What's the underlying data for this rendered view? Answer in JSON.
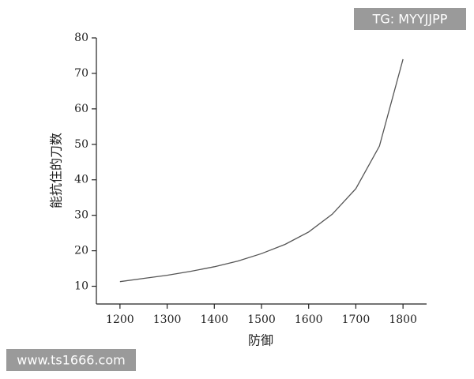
{
  "chart_data": {
    "type": "line",
    "x_label": "防御",
    "y_label": "能抗住的刀数",
    "x": [
      1200,
      1250,
      1300,
      1350,
      1400,
      1450,
      1500,
      1550,
      1600,
      1650,
      1700,
      1750,
      1800
    ],
    "series": [
      {
        "name": "",
        "color": "#555555",
        "values": [
          11.3,
          12.2,
          13.1,
          14.2,
          15.5,
          17.1,
          19.2,
          21.8,
          25.3,
          30.3,
          37.5,
          49.5,
          74
        ]
      }
    ],
    "xlim": [
      1150,
      1850
    ],
    "ylim": [
      5,
      80
    ],
    "xticks": [
      1200,
      1300,
      1400,
      1500,
      1600,
      1700,
      1800
    ],
    "yticks": [
      10,
      20,
      30,
      40,
      50,
      60,
      70,
      80
    ]
  },
  "watermarks": [
    "TG: MYYJJPP",
    "www.ts1666.com"
  ]
}
